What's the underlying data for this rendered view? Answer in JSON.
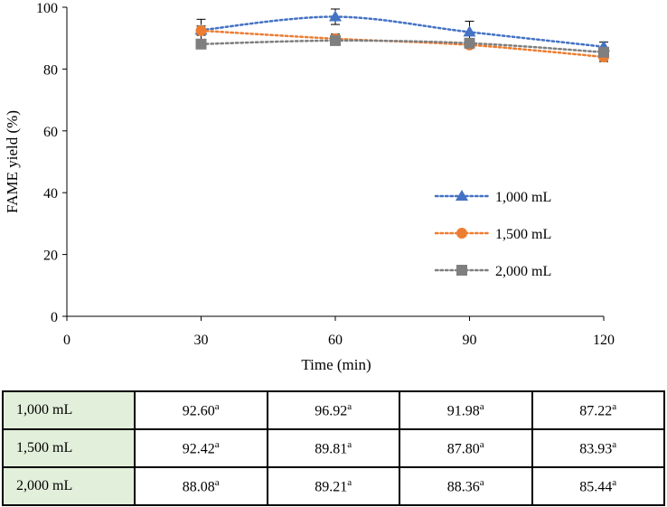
{
  "chart_data": {
    "type": "line",
    "title": "",
    "xlabel": "Time (min)",
    "ylabel": "FAME yield (%)",
    "xlim": [
      0,
      120
    ],
    "ylim": [
      0,
      100
    ],
    "x_ticks": [
      0,
      30,
      60,
      90,
      120
    ],
    "y_ticks": [
      0,
      20,
      40,
      60,
      80,
      100
    ],
    "x_tick_labels": [
      "0",
      "30",
      "60",
      "90",
      "120"
    ],
    "y_tick_labels": [
      "0",
      "20",
      "40",
      "60",
      "80",
      "100"
    ],
    "x": [
      30,
      60,
      90,
      120
    ],
    "legend_position": "right-middle",
    "grid": false,
    "series": [
      {
        "name": "1,000 mL",
        "values": [
          92.6,
          96.92,
          91.98,
          87.22
        ],
        "errors": [
          3.5,
          2.5,
          3.5,
          1.5
        ],
        "color": "#4472c4",
        "marker": "triangle"
      },
      {
        "name": "1,500 mL",
        "values": [
          92.42,
          89.81,
          87.8,
          83.93
        ],
        "errors": [
          1.5,
          1.5,
          1.0,
          1.5
        ],
        "color": "#ed7d31",
        "marker": "circle"
      },
      {
        "name": "2,000 mL",
        "values": [
          88.08,
          89.21,
          88.36,
          85.44
        ],
        "errors": [
          1.0,
          1.0,
          1.0,
          1.0
        ],
        "color": "#7f7f7f",
        "marker": "square"
      }
    ]
  },
  "table": {
    "rows": [
      {
        "label": "1,000 mL",
        "cells": [
          "92.60",
          "96.92",
          "91.98",
          "87.22"
        ],
        "sup": "a"
      },
      {
        "label": "1,500 mL",
        "cells": [
          "92.42",
          "89.81",
          "87.80",
          "83.93"
        ],
        "sup": "a"
      },
      {
        "label": "2,000 mL",
        "cells": [
          "88.08",
          "89.21",
          "88.36",
          "85.44"
        ],
        "sup": "a"
      }
    ]
  }
}
